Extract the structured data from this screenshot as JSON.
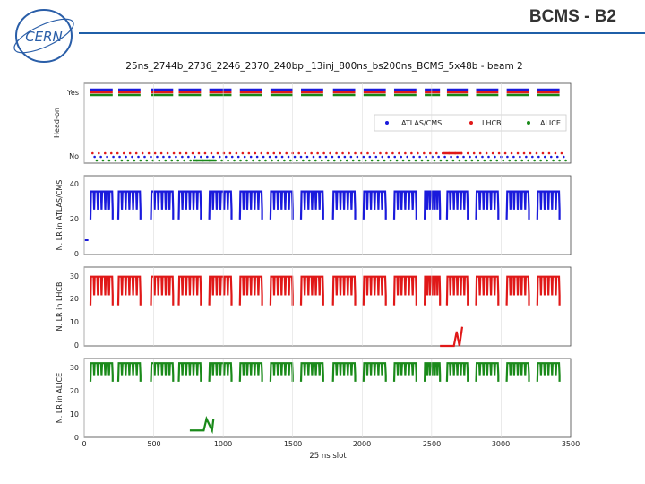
{
  "slide": {
    "title": "BCMS - B2",
    "logo_text": "CERN"
  },
  "colors": {
    "atlas": "#1a1adc",
    "lhcb": "#e01818",
    "alice": "#1a8a1a",
    "header_line": "#1f5fa8"
  },
  "chart_data": {
    "type": "scatter",
    "title": "25ns_2744b_2736_2246_2370_240bpi_13inj_800ns_bs200ns_BCMS_5x48b - beam 2",
    "xlabel": "25 ns slot",
    "xlim": [
      0,
      3500
    ],
    "xticks": [
      "0",
      "500",
      "1000",
      "1500",
      "2000",
      "2500",
      "3000",
      "3500"
    ],
    "trains": [
      [
        45,
        205
      ],
      [
        245,
        405
      ],
      [
        480,
        640
      ],
      [
        680,
        840
      ],
      [
        900,
        1060
      ],
      [
        1120,
        1280
      ],
      [
        1340,
        1500
      ],
      [
        1560,
        1720
      ],
      [
        1790,
        1950
      ],
      [
        2010,
        2170
      ],
      [
        2230,
        2390
      ],
      [
        2450,
        2560
      ],
      [
        2610,
        2760
      ],
      [
        2820,
        2980
      ],
      [
        3040,
        3200
      ],
      [
        3260,
        3420
      ]
    ],
    "panels": [
      {
        "ylabel": "Head-on",
        "yticks": [
          "No",
          "Yes"
        ],
        "legend": {
          "position": "right",
          "entries": [
            "ATLAS/CMS",
            "LHCB",
            "ALICE"
          ]
        }
      },
      {
        "ylabel": "N. LR in ATLAS/CMS",
        "ylim": [
          0,
          45
        ],
        "yticks": [
          "0",
          "20",
          "40"
        ],
        "series": "ATLAS/CMS",
        "level_high": 36,
        "level_low": 20
      },
      {
        "ylabel": "N. LR in LHCB",
        "ylim": [
          0,
          33
        ],
        "yticks": [
          "0",
          "10",
          "20",
          "30"
        ],
        "series": "LHCB",
        "level_high": 29,
        "level_low": 17
      },
      {
        "ylabel": "N. LR in ALICE",
        "ylim": [
          0,
          34
        ],
        "yticks": [
          "0",
          "10",
          "20",
          "30"
        ],
        "series": "ALICE",
        "level_high": 32,
        "level_low": 24
      }
    ]
  }
}
